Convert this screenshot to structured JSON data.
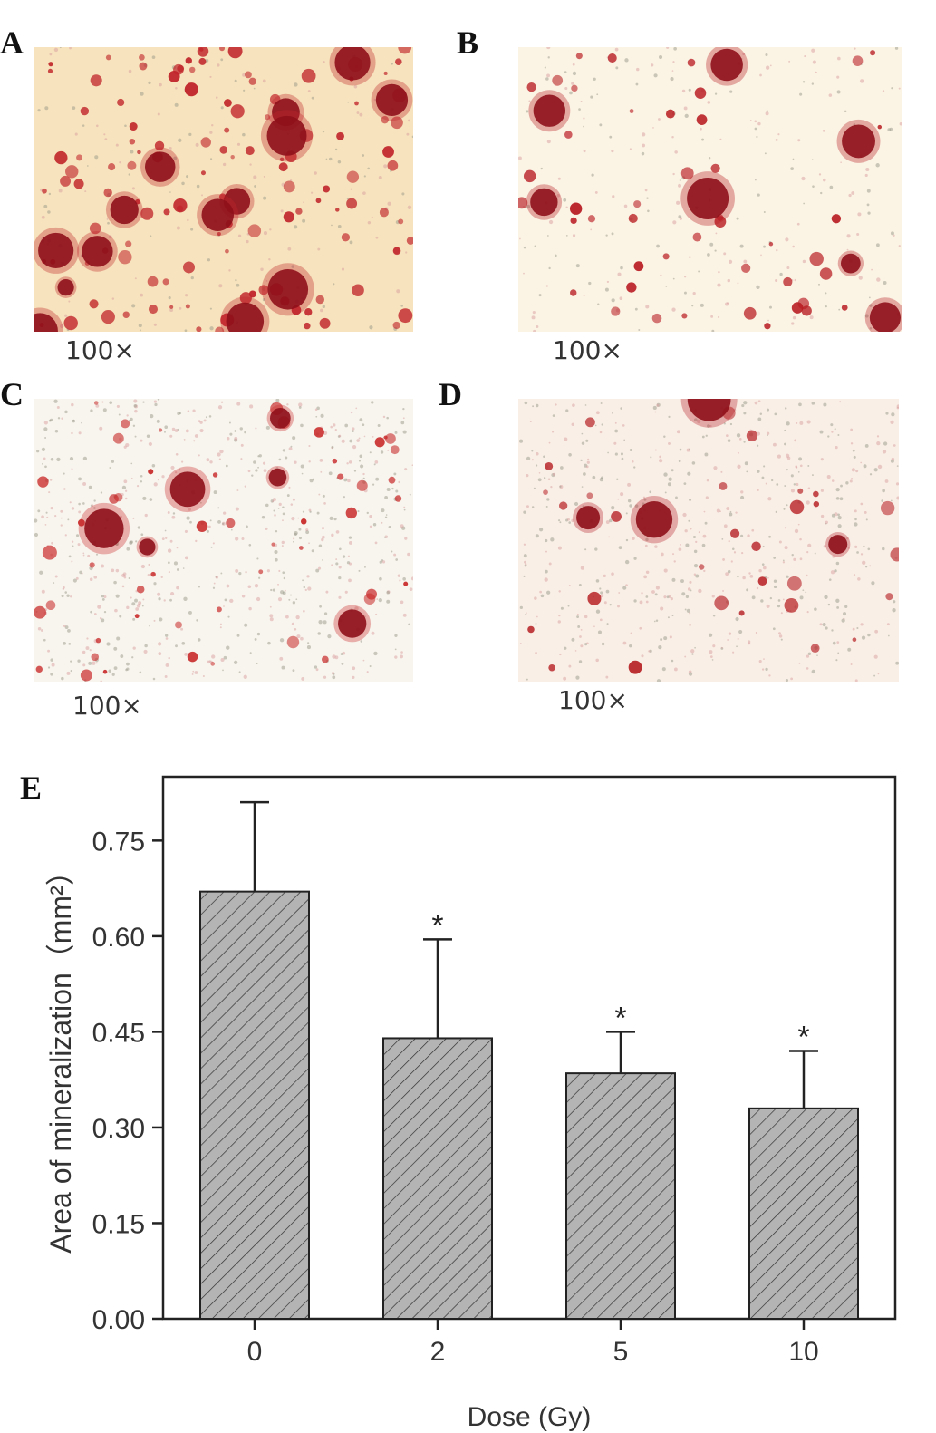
{
  "panels": [
    {
      "letter": "A",
      "magnification": "100×"
    },
    {
      "letter": "B",
      "magnification": "100×"
    },
    {
      "letter": "C",
      "magnification": "100×"
    },
    {
      "letter": "D",
      "magnification": "100×"
    }
  ],
  "chart_letter": "E",
  "chart_data": {
    "type": "bar",
    "categories": [
      "0",
      "2",
      "5",
      "10"
    ],
    "values": [
      0.67,
      0.44,
      0.385,
      0.33
    ],
    "errors": [
      0.14,
      0.155,
      0.065,
      0.09
    ],
    "significance": [
      "",
      "*",
      "*",
      "*"
    ],
    "xlabel": "Dose (Gy)",
    "ylabel": "Area of mineralization（mm²）",
    "ylim": [
      0,
      0.85
    ],
    "yticks": [
      0.0,
      0.15,
      0.3,
      0.45,
      0.6,
      0.75
    ],
    "ytick_labels": [
      "0.00",
      "0.15",
      "0.30",
      "0.45",
      "0.60",
      "0.75"
    ],
    "bar_color": "#b4b4b4",
    "hatch": "diagonal",
    "grid": false
  },
  "micrograph_colors": {
    "A": {
      "bg": "#f7e3bd",
      "spot": "#c0242a"
    },
    "B": {
      "bg": "#fbf3e4",
      "spot": "#b81c22"
    },
    "C": {
      "bg": "#f8f5ee",
      "spot": "#c82a2a"
    },
    "D": {
      "bg": "#f9efe6",
      "spot": "#b8262a"
    }
  }
}
